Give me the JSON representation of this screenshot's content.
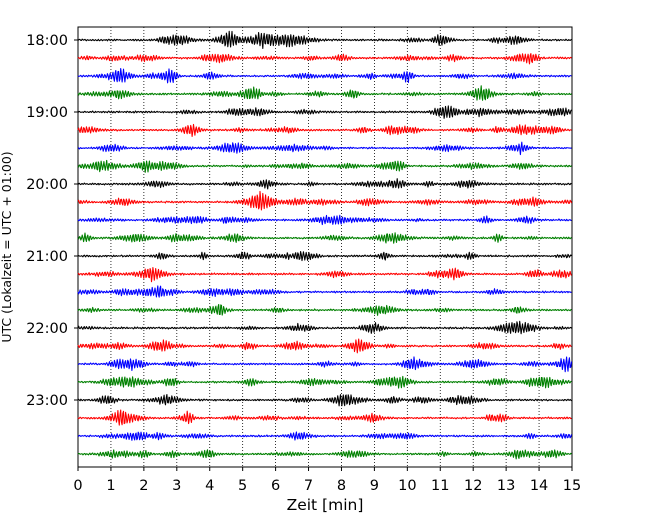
{
  "chart_data": {
    "type": "line",
    "title": "",
    "xlabel": "Zeit  [min]",
    "ylabel": "UTC (Lokalzeit = UTC + 01:00)",
    "xlim": [
      0,
      15
    ],
    "x_ticks": [
      0,
      1,
      2,
      3,
      4,
      5,
      6,
      7,
      8,
      9,
      10,
      11,
      12,
      13,
      14,
      15
    ],
    "x_grid": "dotted vertical at each minute",
    "y_tick_labels": [
      "18:00",
      "19:00",
      "20:00",
      "21:00",
      "22:00",
      "23:00"
    ],
    "rows_per_hour": 4,
    "row_minutes": 15,
    "traces": [
      {
        "start": "18:00",
        "color": "#000000"
      },
      {
        "start": "18:15",
        "color": "#ff0000"
      },
      {
        "start": "18:30",
        "color": "#0000ff"
      },
      {
        "start": "18:45",
        "color": "#008000"
      },
      {
        "start": "19:00",
        "color": "#000000"
      },
      {
        "start": "19:15",
        "color": "#ff0000"
      },
      {
        "start": "19:30",
        "color": "#0000ff"
      },
      {
        "start": "19:45",
        "color": "#008000"
      },
      {
        "start": "20:00",
        "color": "#000000"
      },
      {
        "start": "20:15",
        "color": "#ff0000"
      },
      {
        "start": "20:30",
        "color": "#0000ff"
      },
      {
        "start": "20:45",
        "color": "#008000"
      },
      {
        "start": "21:00",
        "color": "#000000"
      },
      {
        "start": "21:15",
        "color": "#ff0000"
      },
      {
        "start": "21:30",
        "color": "#0000ff"
      },
      {
        "start": "21:45",
        "color": "#008000"
      },
      {
        "start": "22:00",
        "color": "#000000"
      },
      {
        "start": "22:15",
        "color": "#ff0000"
      },
      {
        "start": "22:30",
        "color": "#0000ff"
      },
      {
        "start": "22:45",
        "color": "#008000"
      },
      {
        "start": "23:00",
        "color": "#000000"
      },
      {
        "start": "23:15",
        "color": "#ff0000"
      },
      {
        "start": "23:30",
        "color": "#0000ff"
      },
      {
        "start": "23:45",
        "color": "#008000"
      }
    ]
  }
}
